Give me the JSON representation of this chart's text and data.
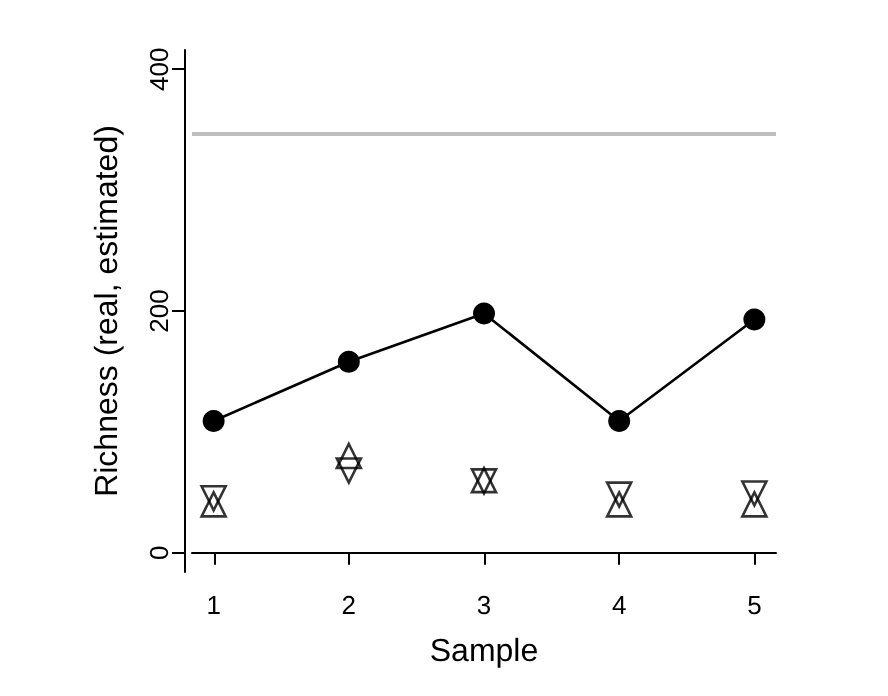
{
  "chart_data": {
    "type": "line",
    "xlabel": "Sample",
    "ylabel": "Richness (real, estimated)",
    "x": [
      1,
      2,
      3,
      4,
      5
    ],
    "series": [
      {
        "color": "#000000",
        "marker": "circle",
        "line_style": "solid",
        "values": [
          109,
          158,
          198,
          109,
          193
        ]
      },
      {
        "type": "scatter",
        "color": "#000000",
        "marker": "triangle",
        "values": [
          40,
          80,
          60,
          40,
          40
        ]
      },
      {
        "type": "scatter",
        "color": "#000000",
        "marker": "triangle_down",
        "values": [
          45,
          68,
          59,
          48,
          49
        ]
      }
    ],
    "ref_lines": [
      {
        "axis": "y",
        "value": 347,
        "color": "#bebebe"
      }
    ],
    "xlim": [
      0.84,
      5.16
    ],
    "xticks": [
      1,
      2,
      3,
      4,
      5
    ],
    "ylim": [
      -16,
      416
    ],
    "yticks": [
      0,
      200,
      400
    ],
    "grid": false,
    "legend": false
  }
}
